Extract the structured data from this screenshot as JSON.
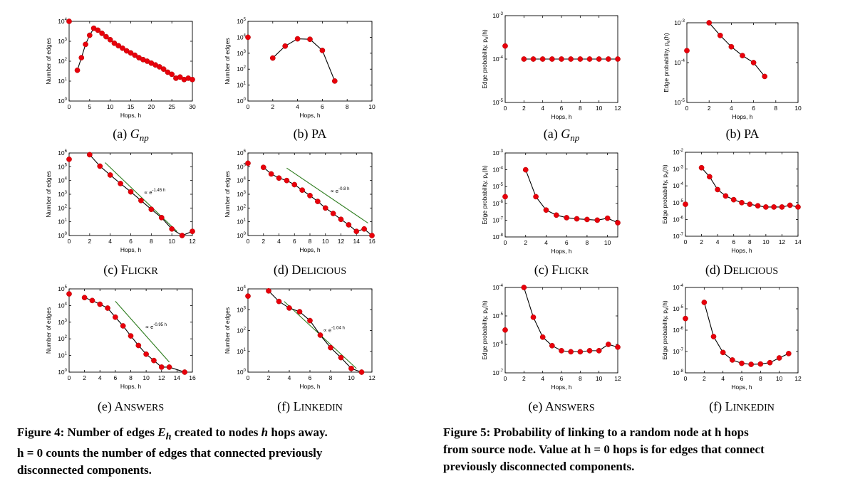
{
  "panel_label_prefix": [
    "(a)",
    "(b)",
    "(c)",
    "(d)",
    "(e)",
    "(f)"
  ],
  "captions": {
    "fig4": {
      "lead": "Figure 4: Number of edges ",
      "sym": "E",
      "sub": "h",
      "mid": " created to nodes ",
      "h": "h",
      "tail1": " hops away.",
      "line2": "h = 0 counts the number of edges that connected previously",
      "line3": "disconnected components."
    },
    "fig5": {
      "line1": "Figure 5: Probability of linking to a random node at h hops",
      "line2": "from source node. Value at h = 0 hops is for edges that connect",
      "line3": "previously disconnected components."
    }
  },
  "chart_data": [
    {
      "figure": "fig4",
      "panel": "a",
      "title": "Gnp",
      "type": "scatter",
      "xlabel": "Hops, h",
      "ylabel": "Number of edges",
      "xlim": [
        0,
        30
      ],
      "xticks": [
        0,
        5,
        10,
        15,
        20,
        25,
        30
      ],
      "ylog": true,
      "ylim": [
        0,
        4
      ],
      "yticks": [
        0,
        1,
        2,
        3,
        4
      ],
      "iso": {
        "x": 0,
        "y": 10000
      },
      "x": [
        2,
        3,
        4,
        5,
        6,
        7,
        8,
        9,
        10,
        11,
        12,
        13,
        14,
        15,
        16,
        17,
        18,
        19,
        20,
        21,
        22,
        23,
        24,
        25,
        26,
        27,
        28,
        29,
        30
      ],
      "y": [
        35,
        150,
        700,
        2000,
        4500,
        3600,
        2500,
        1700,
        1200,
        800,
        600,
        450,
        330,
        260,
        200,
        150,
        120,
        100,
        80,
        65,
        52,
        40,
        28,
        22,
        14,
        16,
        12,
        14,
        12
      ],
      "fit": null
    },
    {
      "figure": "fig4",
      "panel": "b",
      "title": "PA",
      "type": "scatter",
      "xlabel": "Hops, h",
      "ylabel": "Number of edges",
      "xlim": [
        0,
        10
      ],
      "xticks": [
        0,
        2,
        4,
        6,
        8,
        10
      ],
      "ylog": true,
      "ylim": [
        0,
        5
      ],
      "yticks": [
        0,
        1,
        2,
        3,
        4,
        5
      ],
      "iso": {
        "x": 0,
        "y": 10000
      },
      "x": [
        2,
        3,
        4,
        5,
        6,
        7
      ],
      "y": [
        500,
        2800,
        8000,
        7500,
        1500,
        18
      ],
      "fit": null
    },
    {
      "figure": "fig4",
      "panel": "c",
      "title": "Flickr",
      "type": "scatter",
      "xlabel": "Hops, h",
      "ylabel": "Number of edges",
      "xlim": [
        0,
        12
      ],
      "xticks": [
        0,
        2,
        4,
        6,
        8,
        10,
        12
      ],
      "ylog": true,
      "ylim": [
        0,
        6
      ],
      "yticks": [
        0,
        1,
        2,
        3,
        4,
        5,
        6
      ],
      "iso": {
        "x": 0,
        "y": 350000
      },
      "x": [
        2,
        3,
        4,
        5,
        6,
        7,
        8,
        9,
        10,
        11,
        12
      ],
      "y": [
        750000,
        110000,
        25000,
        6000,
        1500,
        350,
        80,
        20,
        3,
        1,
        2
      ],
      "fit": {
        "label": "∝ e",
        "exp": "-1.45 h",
        "x": [
          3.5,
          10.5
        ],
        "y": [
          200000,
          2
        ]
      }
    },
    {
      "figure": "fig4",
      "panel": "d",
      "title": "Delicious",
      "type": "scatter",
      "xlabel": "Hops, h",
      "ylabel": "Number of edges",
      "xlim": [
        0,
        16
      ],
      "xticks": [
        0,
        2,
        4,
        6,
        8,
        10,
        12,
        14,
        16
      ],
      "ylog": true,
      "ylim": [
        0,
        6
      ],
      "yticks": [
        0,
        1,
        2,
        3,
        4,
        5,
        6
      ],
      "iso": {
        "x": 0,
        "y": 180000
      },
      "x": [
        2,
        3,
        4,
        5,
        6,
        7,
        8,
        9,
        10,
        11,
        12,
        13,
        14,
        15,
        16
      ],
      "y": [
        90000,
        30000,
        15000,
        10000,
        5000,
        2000,
        800,
        300,
        100,
        40,
        15,
        6,
        2,
        3,
        1
      ],
      "fit": {
        "label": "∝ e",
        "exp": "-0.8 h",
        "x": [
          5,
          15.5
        ],
        "y": [
          80000,
          8
        ]
      }
    },
    {
      "figure": "fig4",
      "panel": "e",
      "title": "Answers",
      "type": "scatter",
      "xlabel": "Hops, h",
      "ylabel": "Number of edges",
      "xlim": [
        0,
        16
      ],
      "xticks": [
        0,
        2,
        4,
        6,
        8,
        10,
        12,
        14,
        16
      ],
      "ylog": true,
      "ylim": [
        0,
        5
      ],
      "yticks": [
        0,
        1,
        2,
        3,
        4,
        5
      ],
      "iso": {
        "x": 0,
        "y": 50000
      },
      "x": [
        2,
        3,
        4,
        5,
        6,
        7,
        8,
        9,
        10,
        11,
        12,
        13,
        15
      ],
      "y": [
        30000,
        20000,
        12000,
        7000,
        2000,
        600,
        150,
        40,
        12,
        5,
        2,
        2,
        1
      ],
      "fit": {
        "label": "∝ e",
        "exp": "-0.95 h",
        "x": [
          6,
          13
        ],
        "y": [
          18000,
          4
        ]
      }
    },
    {
      "figure": "fig4",
      "panel": "f",
      "title": "LinkedIn",
      "type": "scatter",
      "xlabel": "Hops, h",
      "ylabel": "Number of edges",
      "xlim": [
        0,
        12
      ],
      "xticks": [
        0,
        2,
        4,
        6,
        8,
        10,
        12
      ],
      "ylog": true,
      "ylim": [
        0,
        4
      ],
      "yticks": [
        0,
        1,
        2,
        3,
        4
      ],
      "iso": {
        "x": 0,
        "y": 4500
      },
      "x": [
        2,
        3,
        4,
        5,
        6,
        7,
        8,
        9,
        10,
        11
      ],
      "y": [
        8000,
        2500,
        1200,
        800,
        300,
        60,
        15,
        5,
        1.5,
        1
      ],
      "fit": {
        "label": "∝ e",
        "exp": "-1.04 h",
        "x": [
          3.5,
          10.5
        ],
        "y": [
          2500,
          1.5
        ]
      }
    },
    {
      "figure": "fig5",
      "panel": "a",
      "title": "Gnp",
      "type": "scatter",
      "xlabel": "Hops, h",
      "ylabel": "Edge probability, pe(h)",
      "xlim": [
        0,
        12
      ],
      "xticks": [
        0,
        2,
        4,
        6,
        8,
        10,
        12
      ],
      "ylog": true,
      "ylim": [
        -5,
        -3
      ],
      "yticks": [
        -5,
        -4,
        -3
      ],
      "iso": {
        "x": 0,
        "y": 0.0002
      },
      "x": [
        2,
        3,
        4,
        5,
        6,
        7,
        8,
        9,
        10,
        11,
        12
      ],
      "y": [
        0.0001,
        0.0001,
        0.0001,
        0.0001,
        0.0001,
        0.0001,
        0.0001,
        0.0001,
        0.0001,
        0.0001,
        0.0001
      ],
      "fit": null
    },
    {
      "figure": "fig5",
      "panel": "b",
      "title": "PA",
      "type": "scatter",
      "xlabel": "Hops, h",
      "ylabel": "Edge probability, pe(h)",
      "xlim": [
        0,
        10
      ],
      "xticks": [
        0,
        2,
        4,
        6,
        8,
        10
      ],
      "ylog": true,
      "ylim": [
        -5,
        -3
      ],
      "yticks": [
        -5,
        -4,
        -3
      ],
      "iso": {
        "x": 0,
        "y": 0.0002
      },
      "x": [
        2,
        3,
        4,
        5,
        6,
        7
      ],
      "y": [
        0.001,
        0.00048,
        0.00025,
        0.00015,
        0.0001,
        4.5e-05
      ],
      "fit": null
    },
    {
      "figure": "fig5",
      "panel": "c",
      "title": "Flickr",
      "type": "scatter",
      "xlabel": "Hops, h",
      "ylabel": "Edge probability, pe(h)",
      "xlim": [
        0,
        11
      ],
      "xticks": [
        0,
        2,
        4,
        6,
        8,
        10
      ],
      "ylog": true,
      "ylim": [
        -8,
        -3
      ],
      "yticks": [
        -8,
        -7,
        -6,
        -5,
        -4,
        -3
      ],
      "iso": {
        "x": 0,
        "y": 2.5e-06
      },
      "x": [
        2,
        3,
        4,
        5,
        6,
        7,
        8,
        9,
        10,
        11
      ],
      "y": [
        0.0001,
        2.5e-06,
        4e-07,
        2e-07,
        1.4e-07,
        1.2e-07,
        1.1e-07,
        1e-07,
        1.3e-07,
        7e-08
      ],
      "fit": null
    },
    {
      "figure": "fig5",
      "panel": "d",
      "title": "Delicious",
      "type": "scatter",
      "xlabel": "Hops, h",
      "ylabel": "Edge probability, pe(h)",
      "xlim": [
        0,
        14
      ],
      "xticks": [
        0,
        2,
        4,
        6,
        8,
        10,
        12,
        14
      ],
      "ylog": true,
      "ylim": [
        -7,
        -2
      ],
      "yticks": [
        -7,
        -6,
        -5,
        -4,
        -3,
        -2
      ],
      "iso": {
        "x": 0,
        "y": 8e-06
      },
      "x": [
        2,
        3,
        4,
        5,
        6,
        7,
        8,
        9,
        10,
        11,
        12,
        13,
        14
      ],
      "y": [
        0.0012,
        0.00035,
        6e-05,
        2.5e-05,
        1.5e-05,
        1e-05,
        8e-06,
        6.5e-06,
        5.5e-06,
        5.5e-06,
        5.5e-06,
        7e-06,
        5.5e-06
      ],
      "fit": null
    },
    {
      "figure": "fig5",
      "panel": "e",
      "title": "Answers",
      "type": "scatter",
      "xlabel": "Hops, h",
      "ylabel": "Edge probability, pe(h)",
      "xlim": [
        0,
        12
      ],
      "xticks": [
        0,
        2,
        4,
        6,
        8,
        10,
        12
      ],
      "ylog": true,
      "ylim": [
        -7,
        -4
      ],
      "yticks": [
        -7,
        -6,
        -5,
        -4
      ],
      "iso": {
        "x": 0,
        "y": 3.2e-06
      },
      "x": [
        2,
        3,
        4,
        5,
        6,
        7,
        8,
        9,
        10,
        11,
        12
      ],
      "y": [
        0.0001,
        9e-06,
        1.8e-06,
        9e-07,
        6e-07,
        5.5e-07,
        5.5e-07,
        6e-07,
        6e-07,
        1e-06,
        8e-07
      ],
      "fit": null
    },
    {
      "figure": "fig5",
      "panel": "f",
      "title": "LinkedIn",
      "type": "scatter",
      "xlabel": "Hops, h",
      "ylabel": "Edge probability, pe(h)",
      "xlim": [
        0,
        12
      ],
      "xticks": [
        0,
        2,
        4,
        6,
        8,
        10,
        12
      ],
      "ylog": true,
      "ylim": [
        -8,
        -4
      ],
      "yticks": [
        -8,
        -7,
        -6,
        -5,
        -4
      ],
      "iso": {
        "x": 0,
        "y": 3.5e-06
      },
      "x": [
        2,
        3,
        4,
        5,
        6,
        7,
        8,
        9,
        10,
        11
      ],
      "y": [
        2e-05,
        5e-07,
        9e-08,
        4e-08,
        2.8e-08,
        2.5e-08,
        2.6e-08,
        3e-08,
        5e-08,
        8e-08
      ],
      "fit": null
    }
  ],
  "colors": {
    "marker": "#e8000b",
    "marker_edge": "#b00000",
    "line": "#000000",
    "fit": "#2e7d1f",
    "axis": "#000000"
  }
}
